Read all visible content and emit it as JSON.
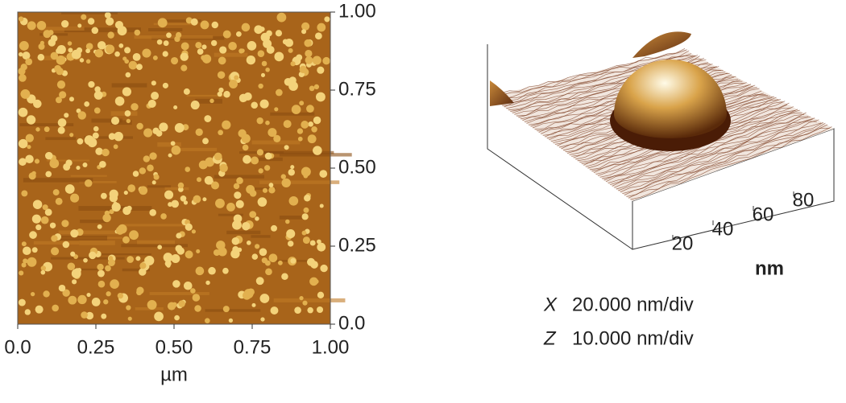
{
  "chart_data": [
    {
      "type": "image",
      "xlabel": "µm",
      "xlim": [
        0,
        1
      ],
      "ylim": [
        0,
        1
      ],
      "xticks": [
        {
          "value": 0,
          "label": "0.0"
        },
        0.25,
        {
          "value": 0.5,
          "label": "0.50"
        },
        0.75,
        {
          "value": 1,
          "label": "1.00"
        }
      ],
      "yticks": [
        {
          "value": 0,
          "label": "0.0"
        },
        0.25,
        {
          "value": 0.5,
          "label": "0.50"
        },
        0.75,
        {
          "value": 1,
          "label": "1.00"
        }
      ]
    },
    {
      "type": "surface",
      "xlabel": "nm",
      "xlim": [
        0,
        100
      ],
      "xticks": [
        20,
        40,
        60,
        80
      ],
      "annotations": [
        {
          "axis": "X",
          "scale": "20.000 nm/div"
        },
        {
          "axis": "Z",
          "scale": "10.000 nm/div"
        }
      ]
    }
  ]
}
